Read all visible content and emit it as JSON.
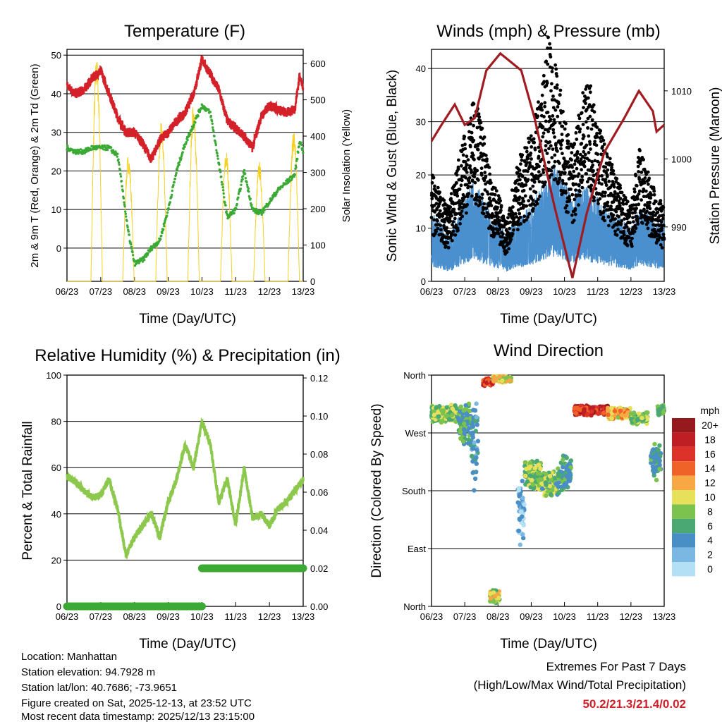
{
  "info": {
    "location": "Location: Manhattan",
    "elevation": "Station elevation: 94.7928 m",
    "latlon": "Station lat/lon: 40.7686; -73.9651",
    "created": "Figure created on Sat, 2025-12-13, at 23:52 UTC",
    "recent": "Most recent data timestamp: 2025/12/13 23:15:00"
  },
  "extremes": {
    "title": "Extremes For Past 7 Days",
    "subtitle": "(High/Low/Max Wind/Total Precipitation)",
    "values": "50.2/21.3/21.4/0.02",
    "color": "#d0202a"
  },
  "chart_data": [
    {
      "type": "line",
      "title": "Temperature (F)",
      "xlabel": "Time (Day/UTC)",
      "ylabel": "2m & 9m T (Red, Orange) & 2m Td (Green)",
      "y2label": "Solar Insolation (Yellow)",
      "xticks": [
        "06/23",
        "07/23",
        "08/23",
        "09/23",
        "10/23",
        "11/23",
        "12/23",
        "13/23"
      ],
      "xlim": [
        0,
        7
      ],
      "ylim": [
        -8.6,
        51.5
      ],
      "yticks": [
        "0",
        "10",
        "20",
        "30",
        "40",
        "50"
      ],
      "y2lim": [
        0,
        639
      ],
      "y2ticks": [
        "0",
        "100",
        "200",
        "300",
        "400",
        "500",
        "600"
      ],
      "series": [
        {
          "name": "Temperature",
          "color": "#d42028",
          "points": [
            [
              0,
              42
            ],
            [
              0.25,
              40
            ],
            [
              0.5,
              41
            ],
            [
              0.75,
              44
            ],
            [
              1,
              46
            ],
            [
              1.25,
              40
            ],
            [
              1.5,
              34
            ],
            [
              1.75,
              30
            ],
            [
              2,
              30
            ],
            [
              2.25,
              27
            ],
            [
              2.5,
              23
            ],
            [
              2.75,
              28
            ],
            [
              3,
              30
            ],
            [
              3.25,
              33
            ],
            [
              3.5,
              35
            ],
            [
              3.75,
              40
            ],
            [
              4,
              49
            ],
            [
              4.25,
              45
            ],
            [
              4.5,
              41
            ],
            [
              4.75,
              33
            ],
            [
              5,
              31
            ],
            [
              5.25,
              29
            ],
            [
              5.5,
              26
            ],
            [
              5.75,
              34
            ],
            [
              6,
              37
            ],
            [
              6.25,
              36
            ],
            [
              6.5,
              35
            ],
            [
              6.75,
              36
            ],
            [
              6.9,
              45
            ],
            [
              7,
              41
            ]
          ]
        },
        {
          "name": "Dewpoint",
          "color": "#3aaa35",
          "points": [
            [
              0,
              26
            ],
            [
              0.25,
              25
            ],
            [
              0.5,
              25
            ],
            [
              0.75,
              26
            ],
            [
              1,
              26
            ],
            [
              1.25,
              26
            ],
            [
              1.5,
              24
            ],
            [
              1.65,
              15
            ],
            [
              1.8,
              5
            ],
            [
              2,
              -4
            ],
            [
              2.25,
              -3
            ],
            [
              2.5,
              0
            ],
            [
              2.75,
              2
            ],
            [
              3,
              10
            ],
            [
              3.25,
              20
            ],
            [
              3.5,
              27
            ],
            [
              3.75,
              32
            ],
            [
              4,
              37
            ],
            [
              4.25,
              35
            ],
            [
              4.5,
              22
            ],
            [
              4.75,
              8
            ],
            [
              5,
              10
            ],
            [
              5.25,
              20
            ],
            [
              5.5,
              10
            ],
            [
              5.75,
              9
            ],
            [
              6,
              12
            ],
            [
              6.25,
              15
            ],
            [
              6.5,
              17
            ],
            [
              6.75,
              19
            ],
            [
              6.9,
              28
            ],
            [
              7,
              25
            ]
          ]
        },
        {
          "name": "Solar Insolation",
          "color": "#f5d020",
          "peaks": [
            [
              0.88,
              620
            ],
            [
              1.82,
              350
            ],
            [
              2.8,
              440
            ],
            [
              3.75,
              490
            ],
            [
              4.72,
              360
            ],
            [
              5.7,
              330
            ],
            [
              6.72,
              420
            ]
          ]
        }
      ]
    },
    {
      "type": "scatter",
      "title": "Winds (mph) & Pressure (mb)",
      "xlabel": "Time (Day/UTC)",
      "ylabel": "Sonic Wind & Gust (Blue, Black)",
      "y2label": "Station Pressure (Maroon)",
      "xticks": [
        "06/23",
        "07/23",
        "08/23",
        "09/23",
        "10/23",
        "11/23",
        "12/23",
        "13/23"
      ],
      "xlim": [
        0,
        7
      ],
      "ylim": [
        0,
        43.6
      ],
      "yticks": [
        "0",
        "10",
        "20",
        "30",
        "40"
      ],
      "y2lim": [
        982,
        1016.1
      ],
      "y2ticks": [
        "990",
        "1000",
        "1010"
      ],
      "series": [
        {
          "name": "Gust",
          "color": "#000000",
          "points": [
            [
              0,
              15
            ],
            [
              0.25,
              12
            ],
            [
              0.5,
              10
            ],
            [
              0.75,
              15
            ],
            [
              1,
              20
            ],
            [
              1.25,
              25
            ],
            [
              1.5,
              22
            ],
            [
              1.75,
              15
            ],
            [
              2,
              12
            ],
            [
              2.25,
              8
            ],
            [
              2.5,
              15
            ],
            [
              2.75,
              18
            ],
            [
              3,
              20
            ],
            [
              3.25,
              25
            ],
            [
              3.5,
              33
            ],
            [
              3.75,
              30
            ],
            [
              4,
              22
            ],
            [
              4.25,
              18
            ],
            [
              4.5,
              25
            ],
            [
              4.75,
              27
            ],
            [
              5,
              22
            ],
            [
              5.25,
              18
            ],
            [
              5.5,
              15
            ],
            [
              5.75,
              12
            ],
            [
              6,
              10
            ],
            [
              6.25,
              18
            ],
            [
              6.5,
              15
            ],
            [
              6.75,
              12
            ],
            [
              7,
              10
            ]
          ]
        },
        {
          "name": "Sonic Wind",
          "color": "#4a90cf",
          "points": [
            [
              0,
              9
            ],
            [
              0.25,
              8
            ],
            [
              0.5,
              6
            ],
            [
              0.75,
              8
            ],
            [
              1,
              11
            ],
            [
              1.25,
              13
            ],
            [
              1.5,
              12
            ],
            [
              1.75,
              9
            ],
            [
              2,
              8
            ],
            [
              2.25,
              6
            ],
            [
              2.5,
              8
            ],
            [
              2.75,
              9
            ],
            [
              3,
              10
            ],
            [
              3.25,
              12
            ],
            [
              3.5,
              14
            ],
            [
              3.75,
              15
            ],
            [
              4,
              13
            ],
            [
              4.25,
              11
            ],
            [
              4.5,
              13
            ],
            [
              4.75,
              12
            ],
            [
              5,
              11
            ],
            [
              5.25,
              10
            ],
            [
              5.5,
              9
            ],
            [
              5.75,
              8
            ],
            [
              6,
              7
            ],
            [
              6.25,
              10
            ],
            [
              6.5,
              9
            ],
            [
              6.75,
              8
            ],
            [
              7,
              8
            ]
          ]
        },
        {
          "name": "Station Pressure",
          "color": "#a01c20",
          "points": [
            [
              0,
              1002.6
            ],
            [
              0.3,
              1005
            ],
            [
              0.7,
              1008
            ],
            [
              1,
              1005
            ],
            [
              1.3,
              1006
            ],
            [
              1.65,
              1013
            ],
            [
              2.07,
              1015.5
            ],
            [
              2.7,
              1013
            ],
            [
              3.1,
              1006
            ],
            [
              3.7,
              993
            ],
            [
              4.24,
              982.5
            ],
            [
              4.67,
              992
            ],
            [
              5.2,
              1001
            ],
            [
              5.8,
              1006
            ],
            [
              6.24,
              1010
            ],
            [
              6.66,
              1007
            ],
            [
              6.77,
              1004
            ],
            [
              7,
              1005
            ]
          ]
        }
      ]
    },
    {
      "type": "line",
      "title": "Relative Humidity (%) & Precipitation (in)",
      "xlabel": "Time (Day/UTC)",
      "ylabel": "Percent & Total Rainfall",
      "xticks": [
        "06/23",
        "07/23",
        "08/23",
        "09/23",
        "10/23",
        "11/23",
        "12/23",
        "13/23"
      ],
      "xlim": [
        0,
        7
      ],
      "ylim": [
        0,
        100
      ],
      "yticks": [
        "0",
        "20",
        "40",
        "60",
        "80",
        "100"
      ],
      "y2lim": [
        0,
        0.1215
      ],
      "y2ticks": [
        "0.00",
        "0.02",
        "0.04",
        "0.06",
        "0.08",
        "0.10",
        "0.12"
      ],
      "series": [
        {
          "name": "Relative Humidity",
          "color": "#8cc84b",
          "points": [
            [
              0,
              56
            ],
            [
              0.25,
              54
            ],
            [
              0.5,
              50
            ],
            [
              0.75,
              47
            ],
            [
              1,
              48
            ],
            [
              1.25,
              55
            ],
            [
              1.5,
              42
            ],
            [
              1.75,
              22
            ],
            [
              2,
              30
            ],
            [
              2.25,
              35
            ],
            [
              2.5,
              40
            ],
            [
              2.75,
              30
            ],
            [
              3,
              45
            ],
            [
              3.25,
              55
            ],
            [
              3.5,
              70
            ],
            [
              3.75,
              60
            ],
            [
              4,
              80
            ],
            [
              4.25,
              70
            ],
            [
              4.5,
              45
            ],
            [
              4.75,
              55
            ],
            [
              5,
              35
            ],
            [
              5.25,
              60
            ],
            [
              5.5,
              38
            ],
            [
              5.75,
              40
            ],
            [
              6,
              35
            ],
            [
              6.25,
              42
            ],
            [
              6.5,
              45
            ],
            [
              6.75,
              50
            ],
            [
              7,
              55
            ]
          ]
        },
        {
          "name": "Total Precipitation",
          "color": "#3aaa35",
          "points": [
            [
              0,
              0
            ],
            [
              4,
              0
            ],
            [
              4,
              0.02
            ],
            [
              7,
              0.02
            ]
          ]
        }
      ]
    },
    {
      "type": "scatter",
      "title": "Wind Direction",
      "xlabel": "Time (Day/UTC)",
      "ylabel": "Direction (Colored By Speed)",
      "xticks": [
        "06/23",
        "07/23",
        "08/23",
        "09/23",
        "10/23",
        "11/23",
        "12/23",
        "13/23"
      ],
      "xlim": [
        0,
        7
      ],
      "ylim": [
        0,
        360
      ],
      "yticks": [
        "North",
        "East",
        "South",
        "West",
        "North"
      ],
      "legend": {
        "title": "mph",
        "labels": [
          "20+",
          "18",
          "16",
          "14",
          "12",
          "10",
          "8",
          "6",
          "4",
          "2",
          "0"
        ],
        "colors": [
          "#961a1d",
          "#bf1e24",
          "#dd3229",
          "#ef6328",
          "#f7a845",
          "#e6e05a",
          "#7cc24e",
          "#4aa872",
          "#4a8ec6",
          "#7ab8e3",
          "#b3e0f5"
        ],
        "placement": "right"
      },
      "clusters": [
        {
          "start": 0,
          "end": 0.8,
          "dir": 300,
          "spread": 15,
          "speed": [
            6,
            12
          ]
        },
        {
          "start": 0.8,
          "end": 1.2,
          "dir": 285,
          "spread": 40,
          "speed": [
            4,
            10
          ]
        },
        {
          "start": 1.2,
          "end": 1.4,
          "dir": 250,
          "spread": 70,
          "speed": [
            3,
            7
          ]
        },
        {
          "start": 1.55,
          "end": 1.85,
          "dir": 350,
          "spread": 8,
          "speed": [
            14,
            20
          ]
        },
        {
          "start": 1.85,
          "end": 2.4,
          "dir": 354,
          "spread": 6,
          "speed": [
            8,
            14
          ]
        },
        {
          "start": 1.75,
          "end": 2.05,
          "dir": 15,
          "spread": 12,
          "speed": [
            6,
            14
          ]
        },
        {
          "start": 2.6,
          "end": 2.8,
          "dir": 150,
          "spread": 60,
          "speed": [
            1,
            6
          ]
        },
        {
          "start": 2.8,
          "end": 3.3,
          "dir": 205,
          "spread": 25,
          "speed": [
            6,
            12
          ]
        },
        {
          "start": 3.3,
          "end": 3.8,
          "dir": 190,
          "spread": 20,
          "speed": [
            5,
            12
          ]
        },
        {
          "start": 3.8,
          "end": 4.2,
          "dir": 205,
          "spread": 30,
          "speed": [
            4,
            10
          ]
        },
        {
          "start": 4.3,
          "end": 5.3,
          "dir": 305,
          "spread": 8,
          "speed": [
            14,
            21
          ]
        },
        {
          "start": 5.3,
          "end": 6.0,
          "dir": 300,
          "spread": 10,
          "speed": [
            9,
            16
          ]
        },
        {
          "start": 6.0,
          "end": 6.5,
          "dir": 293,
          "spread": 10,
          "speed": [
            6,
            12
          ]
        },
        {
          "start": 6.6,
          "end": 6.9,
          "dir": 225,
          "spread": 30,
          "speed": [
            4,
            9
          ]
        },
        {
          "start": 6.8,
          "end": 7,
          "dir": 305,
          "spread": 10,
          "speed": [
            6,
            10
          ]
        }
      ]
    }
  ]
}
